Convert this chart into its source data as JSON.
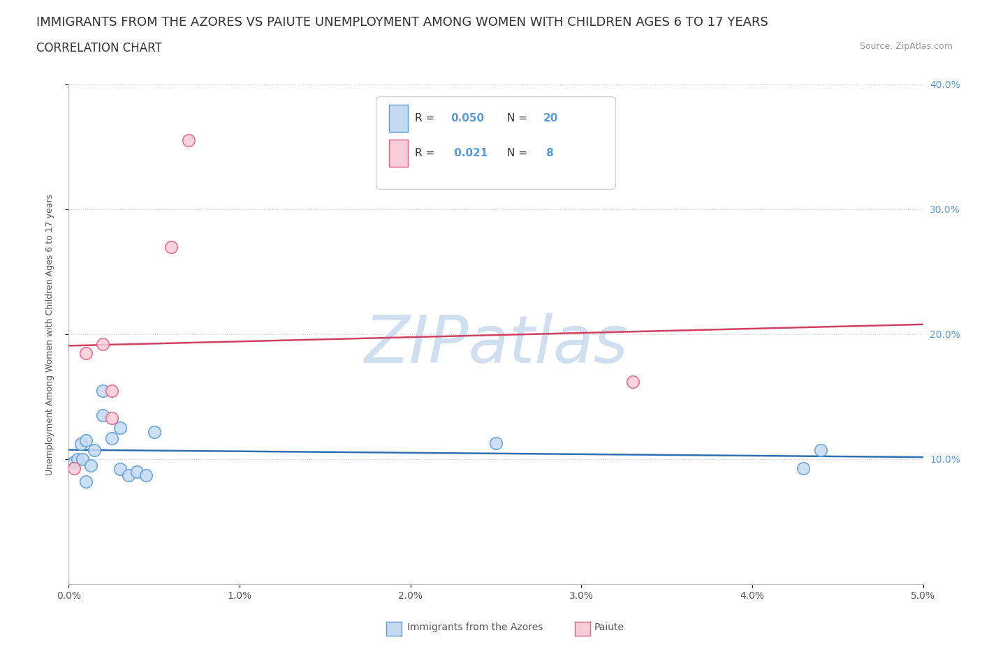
{
  "title": "IMMIGRANTS FROM THE AZORES VS PAIUTE UNEMPLOYMENT AMONG WOMEN WITH CHILDREN AGES 6 TO 17 YEARS",
  "subtitle": "CORRELATION CHART",
  "source": "Source: ZipAtlas.com",
  "ylabel": "Unemployment Among Women with Children Ages 6 to 17 years",
  "xlim": [
    0.0,
    0.05
  ],
  "ylim": [
    0.0,
    0.4
  ],
  "xticks": [
    0.0,
    0.01,
    0.02,
    0.03,
    0.04,
    0.05
  ],
  "xticklabels": [
    "0.0%",
    "1.0%",
    "2.0%",
    "3.0%",
    "4.0%",
    "5.0%"
  ],
  "yticks_right": [
    0.1,
    0.2,
    0.3,
    0.4
  ],
  "yticklabels_right": [
    "10.0%",
    "20.0%",
    "30.0%",
    "40.0%"
  ],
  "watermark": "ZIPatlas",
  "series1_name": "Immigrants from the Azores",
  "series1_fill": "#c5daf0",
  "series1_edge": "#5b9bd5",
  "series1_line": "#3070b0",
  "series1_R": "0.050",
  "series1_N": "20",
  "series1_x": [
    0.0003,
    0.0005,
    0.0007,
    0.0008,
    0.001,
    0.001,
    0.0013,
    0.0015,
    0.002,
    0.002,
    0.0025,
    0.003,
    0.003,
    0.0035,
    0.004,
    0.0045,
    0.005,
    0.025,
    0.043,
    0.044
  ],
  "series1_y": [
    0.098,
    0.1,
    0.112,
    0.1,
    0.115,
    0.082,
    0.095,
    0.107,
    0.155,
    0.135,
    0.117,
    0.125,
    0.092,
    0.087,
    0.09,
    0.087,
    0.122,
    0.113,
    0.093,
    0.107
  ],
  "series2_name": "Paiute",
  "series2_fill": "#f9ccd8",
  "series2_edge": "#e06080",
  "series2_line": "#d04060",
  "series2_R": "0.021",
  "series2_N": "8",
  "series2_x": [
    0.0003,
    0.001,
    0.002,
    0.0025,
    0.0025,
    0.006,
    0.007,
    0.033
  ],
  "series2_y": [
    0.093,
    0.185,
    0.192,
    0.155,
    0.133,
    0.27,
    0.355,
    0.162
  ],
  "background_color": "#ffffff",
  "grid_color": "#cccccc",
  "watermark_color": "#d0dff0",
  "title_fontsize": 13,
  "subtitle_fontsize": 12,
  "tick_fontsize": 10,
  "source_fontsize": 9
}
